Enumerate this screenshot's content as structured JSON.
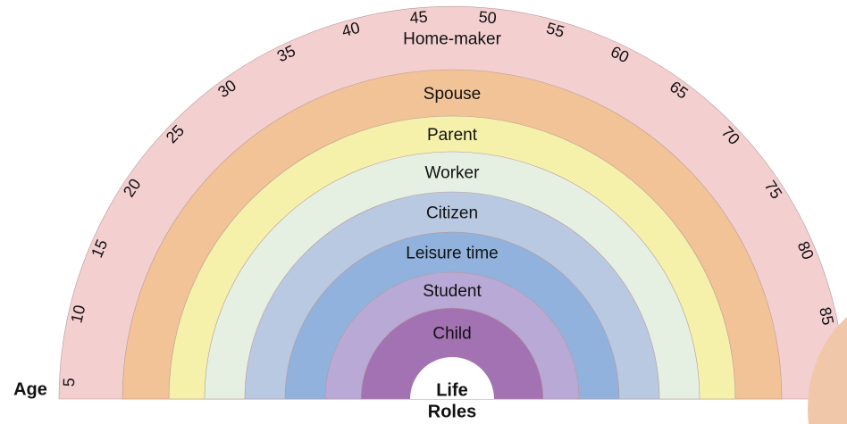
{
  "age_label": "Age",
  "center_label": {
    "line1": "Life",
    "line2": "Roles"
  },
  "roles": [
    {
      "label": "Home-maker",
      "color": "#f3cfd0"
    },
    {
      "label": "Spouse",
      "color": "#f1c396"
    },
    {
      "label": "Parent",
      "color": "#f6f1aa"
    },
    {
      "label": "Worker",
      "color": "#e5efe2"
    },
    {
      "label": "Citizen",
      "color": "#b9c9e2"
    },
    {
      "label": "Leisure time",
      "color": "#90b2dc"
    },
    {
      "label": "Student",
      "color": "#b9a9d6"
    },
    {
      "label": "Child",
      "color": "#a372b3"
    }
  ],
  "ages": [
    "5",
    "10",
    "15",
    "20",
    "25",
    "30",
    "35",
    "40",
    "45",
    "50",
    "55",
    "60",
    "65",
    "70",
    "75",
    "80",
    "85"
  ]
}
